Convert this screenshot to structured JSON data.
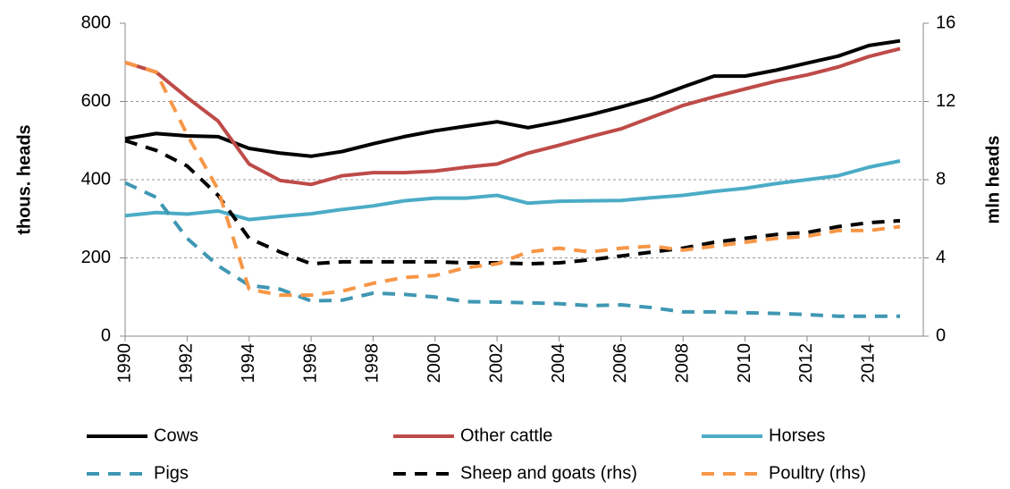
{
  "chart_data": {
    "type": "line",
    "x": [
      1990,
      1991,
      1992,
      1993,
      1994,
      1995,
      1996,
      1997,
      1998,
      1999,
      2000,
      2001,
      2002,
      2003,
      2004,
      2005,
      2006,
      2007,
      2008,
      2009,
      2010,
      2011,
      2012,
      2013,
      2014,
      2015
    ],
    "xlim": [
      1990,
      2015.75
    ],
    "xticks": [
      1990,
      1992,
      1994,
      1996,
      1998,
      2000,
      2002,
      2004,
      2006,
      2008,
      2010,
      2012,
      2014
    ],
    "ylabel": "thous. heads",
    "ylim": [
      0,
      800
    ],
    "yticks": [
      0,
      200,
      400,
      600,
      800
    ],
    "y2label": "mln heads",
    "y2lim": [
      0,
      16
    ],
    "y2ticks": [
      0,
      4,
      8,
      12,
      16
    ],
    "grid": true,
    "legend": "bottom",
    "series": [
      {
        "name": "Cows",
        "color": "#000000",
        "style": "solid",
        "values": [
          505,
          518,
          512,
          510,
          480,
          468,
          460,
          472,
          492,
          510,
          525,
          537,
          548,
          533,
          548,
          566,
          586,
          608,
          637,
          665,
          665,
          680,
          698,
          716,
          743,
          755
        ]
      },
      {
        "name": "Other cattle",
        "color": "#be4b48",
        "style": "solid",
        "values": [
          700,
          675,
          610,
          550,
          440,
          398,
          388,
          410,
          418,
          418,
          422,
          432,
          440,
          468,
          488,
          510,
          530,
          560,
          590,
          612,
          632,
          652,
          668,
          688,
          715,
          735
        ]
      },
      {
        "name": "Horses",
        "color": "#4bacc6",
        "style": "solid",
        "values": [
          308,
          316,
          312,
          320,
          298,
          306,
          313,
          324,
          333,
          346,
          353,
          353,
          360,
          340,
          345,
          346,
          347,
          354,
          360,
          370,
          378,
          390,
          400,
          410,
          432,
          448
        ]
      },
      {
        "name": "Pigs",
        "color": "#3f97b3",
        "style": "dashed",
        "values": [
          392,
          355,
          250,
          180,
          130,
          120,
          90,
          92,
          110,
          107,
          100,
          88,
          87,
          85,
          83,
          78,
          80,
          73,
          62,
          62,
          60,
          58,
          55,
          51,
          51,
          51
        ]
      },
      {
        "name": "Sheep and goats (rhs)",
        "color": "#000000",
        "style": "dashed",
        "axis": "y2",
        "values": [
          10,
          9.5,
          8.7,
          7.2,
          5.0,
          4.3,
          3.7,
          3.8,
          3.8,
          3.8,
          3.8,
          3.75,
          3.75,
          3.7,
          3.75,
          3.9,
          4.1,
          4.3,
          4.5,
          4.8,
          5.0,
          5.2,
          5.3,
          5.6,
          5.8,
          5.9
        ]
      },
      {
        "name": "Poultry (rhs)",
        "color": "#f79646",
        "style": "dashed",
        "axis": "y2",
        "values": [
          14,
          13.5,
          10.3,
          7.5,
          2.4,
          2.1,
          2.1,
          2.3,
          2.7,
          3.0,
          3.1,
          3.5,
          3.7,
          4.3,
          4.5,
          4.3,
          4.5,
          4.6,
          4.4,
          4.6,
          4.8,
          5.0,
          5.1,
          5.4,
          5.4,
          5.6
        ]
      }
    ]
  }
}
